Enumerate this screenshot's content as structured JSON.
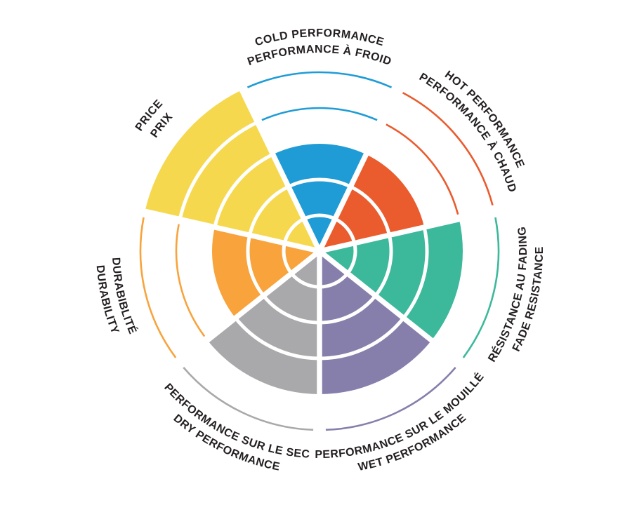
{
  "page": {
    "background": "#FFFFFF",
    "text_color": "#231F20"
  },
  "chart_data": {
    "type": "pie",
    "subtype": "segmented radial level wheel (coxcomb): 7 equal wedges, each filled to a score level out of 5 concentric rings; unreached ring boundaries drawn as thin colored arcs",
    "title": "",
    "rings": 5,
    "value_max": 5,
    "start_angle_deg": -90,
    "direction": "clockwise",
    "grid": "white concentric ring dividers inside filled wedges; white radial separators between wedges",
    "legend_position": "none",
    "label_layout": "bilingual curved rim labels: English line outside, French line inside",
    "segments": [
      {
        "id": "cold-performance",
        "label_en": "COLD PERFORMANCE",
        "label_fr": "PERFORMANCE À FROID",
        "value": 3,
        "max": 5,
        "color": "#1F9CD6"
      },
      {
        "id": "hot-performance",
        "label_en": "HOT PERFORMANCE",
        "label_fr": "PERFORMANCE À CHAUD",
        "value": 3,
        "max": 5,
        "color": "#EA5B2D"
      },
      {
        "id": "fade-resistance",
        "label_en": "FADE RESISTANCE",
        "label_fr": "RÉSISTANCE AU FADING",
        "value": 4,
        "max": 5,
        "color": "#3CB89B"
      },
      {
        "id": "wet-performance",
        "label_en": "WET PERFORMANCE",
        "label_fr": "PERFORMANCE SUR LE MOUILLÉ",
        "value": 4,
        "max": 5,
        "color": "#867FAB"
      },
      {
        "id": "dry-performance",
        "label_en": "DRY PERFORMANCE",
        "label_fr": "PERFORMANCE SUR LE SEC",
        "value": 4,
        "max": 5,
        "color": "#A9A9AB"
      },
      {
        "id": "durability",
        "label_en": "DURABILITY",
        "label_fr": "DURABIBLITÉ",
        "value": 3,
        "max": 5,
        "color": "#F8A33C"
      },
      {
        "id": "price",
        "label_en": "PRICE",
        "label_fr": "PRIX",
        "value": 5,
        "max": 5,
        "color": "#F5D84E"
      }
    ]
  }
}
